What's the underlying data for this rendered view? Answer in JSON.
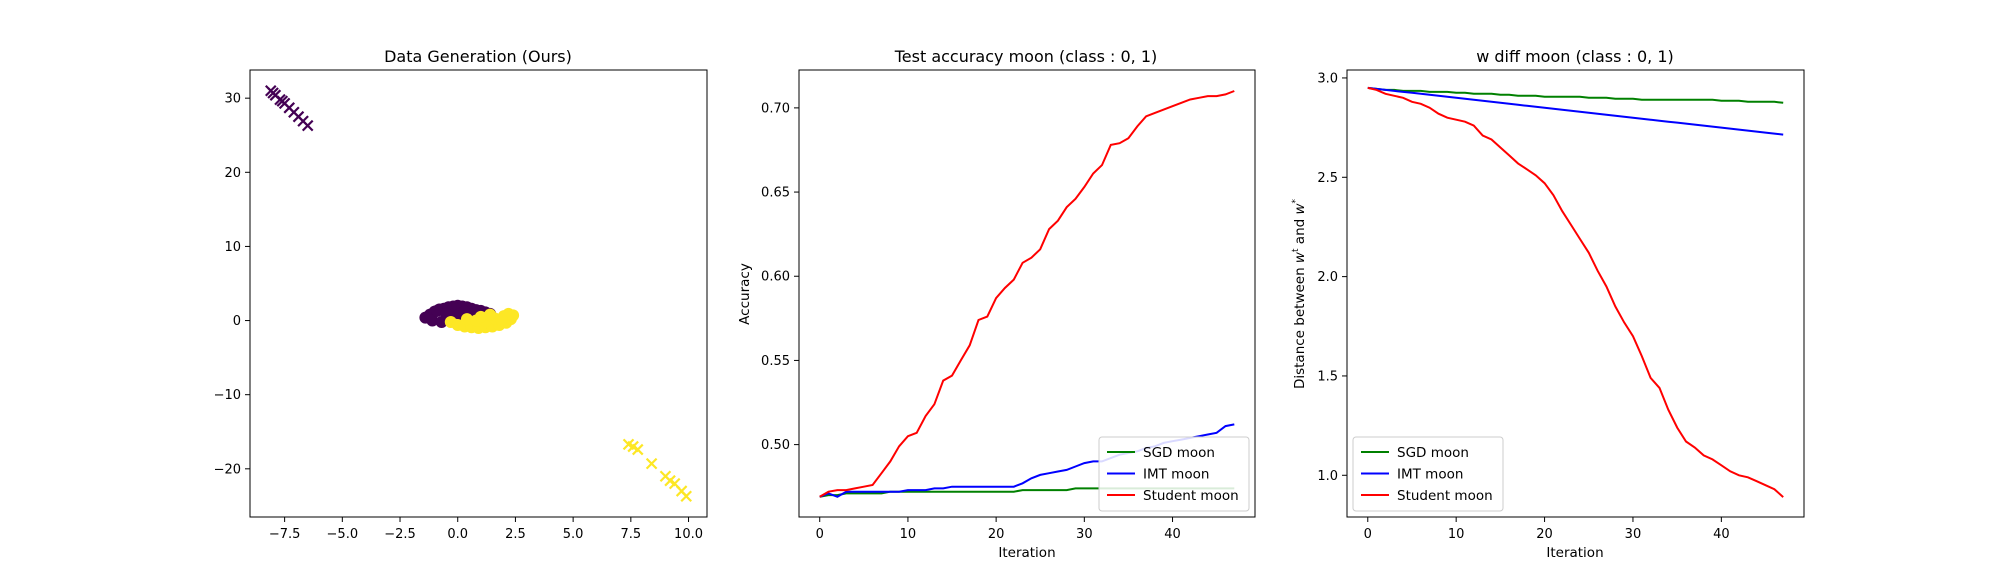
{
  "chart_data": [
    {
      "type": "scatter",
      "title": "Data Generation (Ours)",
      "xlabel": "",
      "ylabel": "",
      "xlim": [
        -9.0,
        10.8
      ],
      "ylim": [
        -26.5,
        33.8
      ],
      "xticks": [
        -7.5,
        -5.0,
        -2.5,
        0.0,
        2.5,
        5.0,
        7.5,
        10.0
      ],
      "xtick_labels": [
        "−7.5",
        "−5.0",
        "−2.5",
        "0.0",
        "2.5",
        "5.0",
        "7.5",
        "10.0"
      ],
      "yticks": [
        -20,
        -10,
        0,
        10,
        20,
        30
      ],
      "ytick_labels": [
        "−20",
        "−10",
        "0",
        "10",
        "20",
        "30"
      ],
      "grid": false,
      "colors": {
        "class0": "#440154",
        "class1": "#fde725"
      },
      "series": [
        {
          "marker": "x",
          "class": 0,
          "x": [
            -8.1,
            -7.9,
            -7.7,
            -7.5,
            -7.3,
            -7.1,
            -6.9,
            -6.7,
            -6.5,
            -8.0,
            -7.6
          ],
          "y": [
            31.0,
            30.4,
            29.8,
            29.3,
            28.7,
            28.1,
            27.5,
            26.9,
            26.3,
            30.7,
            29.6
          ]
        },
        {
          "marker": "x",
          "class": 1,
          "x": [
            7.4,
            7.8,
            8.4,
            9.0,
            9.4,
            9.7,
            9.9,
            7.6,
            9.2
          ],
          "y": [
            -16.7,
            -17.4,
            -19.3,
            -21.0,
            -22.0,
            -23.0,
            -23.7,
            -17.0,
            -21.6
          ]
        },
        {
          "marker": "o",
          "class": 0,
          "x": [
            -1.4,
            -1.2,
            -1.0,
            -0.8,
            -0.6,
            -0.4,
            -0.2,
            0.0,
            0.2,
            0.4,
            0.6,
            0.8,
            1.0,
            1.2,
            1.4,
            -1.1,
            -0.7,
            -0.3,
            0.1,
            0.5,
            0.9,
            -0.9,
            -0.5,
            0.3,
            0.7
          ],
          "y": [
            0.4,
            0.8,
            1.2,
            1.5,
            1.6,
            1.8,
            1.9,
            2.0,
            1.9,
            1.8,
            1.6,
            1.4,
            1.3,
            1.1,
            0.9,
            0.0,
            -0.2,
            0.5,
            0.9,
            0.7,
            0.4,
            1.3,
            0.9,
            1.2,
            1.0
          ]
        },
        {
          "marker": "o",
          "class": 1,
          "x": [
            -0.3,
            0.0,
            0.3,
            0.6,
            0.9,
            1.2,
            1.5,
            1.8,
            2.1,
            2.3,
            2.4,
            0.4,
            0.8,
            1.2,
            1.6,
            2.0,
            2.2,
            1.0,
            1.4,
            1.9
          ],
          "y": [
            -0.2,
            -0.6,
            -0.8,
            -0.9,
            -1.0,
            -0.9,
            -0.8,
            -0.6,
            -0.3,
            0.2,
            0.7,
            0.2,
            0.0,
            -0.1,
            0.3,
            0.6,
            0.9,
            0.5,
            0.8,
            0.1
          ]
        }
      ]
    },
    {
      "type": "line",
      "title": "Test accuracy moon (class : 0, 1)",
      "xlabel": "Iteration",
      "ylabel": "Accuracy",
      "xlim": [
        -2.35,
        49.35
      ],
      "ylim": [
        0.457,
        0.7225
      ],
      "xticks": [
        0,
        10,
        20,
        30,
        40
      ],
      "xtick_labels": [
        "0",
        "10",
        "20",
        "30",
        "40"
      ],
      "yticks": [
        0.5,
        0.55,
        0.6,
        0.65,
        0.7
      ],
      "ytick_labels": [
        "0.50",
        "0.55",
        "0.60",
        "0.65",
        "0.70"
      ],
      "grid": false,
      "legend_position": "lower-right",
      "x": [
        0,
        1,
        2,
        3,
        4,
        5,
        6,
        7,
        8,
        9,
        10,
        11,
        12,
        13,
        14,
        15,
        16,
        17,
        18,
        19,
        20,
        21,
        22,
        23,
        24,
        25,
        26,
        27,
        28,
        29,
        30,
        31,
        32,
        33,
        34,
        35,
        36,
        37,
        38,
        39,
        40,
        41,
        42,
        43,
        44,
        45,
        46,
        47
      ],
      "series": [
        {
          "name": "SGD moon",
          "color": "#008000",
          "values": [
            0.469,
            0.47,
            0.47,
            0.471,
            0.471,
            0.471,
            0.471,
            0.471,
            0.472,
            0.472,
            0.472,
            0.472,
            0.472,
            0.472,
            0.472,
            0.472,
            0.472,
            0.472,
            0.472,
            0.472,
            0.472,
            0.472,
            0.472,
            0.473,
            0.473,
            0.473,
            0.473,
            0.473,
            0.473,
            0.474,
            0.474,
            0.474,
            0.474,
            0.474,
            0.474,
            0.474,
            0.474,
            0.474,
            0.474,
            0.474,
            0.474,
            0.474,
            0.474,
            0.474,
            0.474,
            0.474,
            0.474,
            0.474
          ]
        },
        {
          "name": "IMT moon",
          "color": "#0000ff",
          "values": [
            0.469,
            0.471,
            0.469,
            0.472,
            0.472,
            0.472,
            0.472,
            0.472,
            0.472,
            0.472,
            0.473,
            0.473,
            0.473,
            0.474,
            0.474,
            0.475,
            0.475,
            0.475,
            0.475,
            0.475,
            0.475,
            0.475,
            0.475,
            0.477,
            0.48,
            0.482,
            0.483,
            0.484,
            0.485,
            0.487,
            0.489,
            0.49,
            0.49,
            0.492,
            0.494,
            0.495,
            0.496,
            0.498,
            0.499,
            0.501,
            0.502,
            0.503,
            0.504,
            0.505,
            0.506,
            0.507,
            0.511,
            0.512
          ]
        },
        {
          "name": "Student moon",
          "color": "#ff0000",
          "values": [
            0.469,
            0.472,
            0.473,
            0.473,
            0.474,
            0.475,
            0.476,
            0.483,
            0.49,
            0.499,
            0.505,
            0.507,
            0.517,
            0.524,
            0.538,
            0.541,
            0.55,
            0.559,
            0.574,
            0.576,
            0.587,
            0.593,
            0.598,
            0.608,
            0.611,
            0.616,
            0.628,
            0.633,
            0.641,
            0.646,
            0.653,
            0.661,
            0.666,
            0.678,
            0.679,
            0.682,
            0.689,
            0.695,
            0.697,
            0.699,
            0.701,
            0.703,
            0.705,
            0.706,
            0.707,
            0.707,
            0.708,
            0.71
          ]
        }
      ]
    },
    {
      "type": "line",
      "title": "w diff moon (class : 0, 1)",
      "xlabel": "Iteration",
      "ylabel": "Distance between w^t and w^*",
      "ylabel_parts": {
        "pre": "Distance between ",
        "w1": "w",
        "sup1": "t",
        "mid": " and ",
        "w2": "w",
        "sup2": "*"
      },
      "xlim": [
        -2.35,
        49.35
      ],
      "ylim": [
        0.79,
        3.04
      ],
      "xticks": [
        0,
        10,
        20,
        30,
        40
      ],
      "xtick_labels": [
        "0",
        "10",
        "20",
        "30",
        "40"
      ],
      "yticks": [
        1.0,
        1.5,
        2.0,
        2.5,
        3.0
      ],
      "ytick_labels": [
        "1.0",
        "1.5",
        "2.0",
        "2.5",
        "3.0"
      ],
      "grid": false,
      "legend_position": "lower-left",
      "x": [
        0,
        1,
        2,
        3,
        4,
        5,
        6,
        7,
        8,
        9,
        10,
        11,
        12,
        13,
        14,
        15,
        16,
        17,
        18,
        19,
        20,
        21,
        22,
        23,
        24,
        25,
        26,
        27,
        28,
        29,
        30,
        31,
        32,
        33,
        34,
        35,
        36,
        37,
        38,
        39,
        40,
        41,
        42,
        43,
        44,
        45,
        46,
        47
      ],
      "series": [
        {
          "name": "SGD moon",
          "color": "#008000",
          "values": [
            2.95,
            2.945,
            2.94,
            2.94,
            2.935,
            2.935,
            2.935,
            2.93,
            2.93,
            2.93,
            2.925,
            2.925,
            2.92,
            2.92,
            2.92,
            2.915,
            2.915,
            2.91,
            2.91,
            2.91,
            2.905,
            2.905,
            2.905,
            2.905,
            2.905,
            2.9,
            2.9,
            2.9,
            2.895,
            2.895,
            2.895,
            2.89,
            2.89,
            2.89,
            2.89,
            2.89,
            2.89,
            2.89,
            2.89,
            2.89,
            2.885,
            2.885,
            2.885,
            2.88,
            2.88,
            2.88,
            2.88,
            2.875
          ]
        },
        {
          "name": "IMT moon",
          "color": "#0000ff",
          "values": [
            2.95,
            2.945,
            2.94,
            2.935,
            2.93,
            2.925,
            2.92,
            2.915,
            2.91,
            2.905,
            2.9,
            2.895,
            2.89,
            2.885,
            2.88,
            2.875,
            2.87,
            2.865,
            2.86,
            2.855,
            2.85,
            2.845,
            2.84,
            2.835,
            2.83,
            2.825,
            2.82,
            2.815,
            2.81,
            2.805,
            2.8,
            2.795,
            2.79,
            2.785,
            2.78,
            2.775,
            2.77,
            2.765,
            2.76,
            2.755,
            2.75,
            2.745,
            2.74,
            2.735,
            2.73,
            2.725,
            2.72,
            2.715
          ]
        },
        {
          "name": "Student moon",
          "color": "#ff0000",
          "values": [
            2.95,
            2.94,
            2.92,
            2.91,
            2.9,
            2.88,
            2.87,
            2.85,
            2.82,
            2.8,
            2.79,
            2.78,
            2.76,
            2.71,
            2.69,
            2.65,
            2.61,
            2.57,
            2.54,
            2.51,
            2.47,
            2.41,
            2.33,
            2.26,
            2.19,
            2.12,
            2.03,
            1.95,
            1.85,
            1.77,
            1.7,
            1.6,
            1.49,
            1.44,
            1.33,
            1.24,
            1.17,
            1.14,
            1.1,
            1.08,
            1.05,
            1.02,
            1.0,
            0.99,
            0.97,
            0.95,
            0.93,
            0.89
          ]
        }
      ]
    }
  ]
}
